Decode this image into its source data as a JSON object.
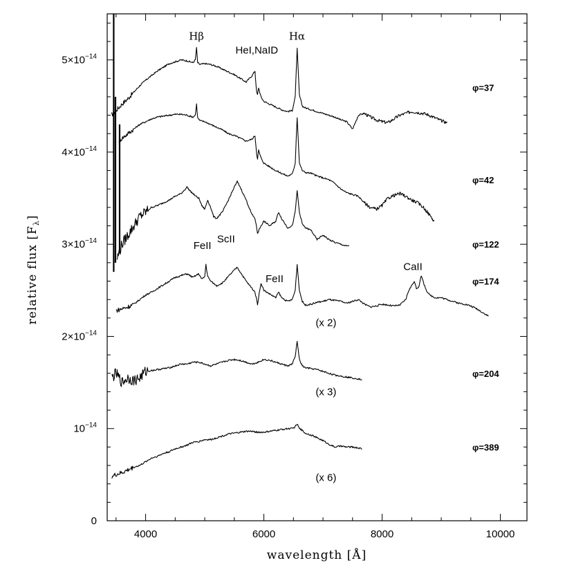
{
  "chart_data": {
    "type": "line",
    "xlabel": "wavelength [Å]",
    "ylabel_main": "relative flux [F",
    "ylabel_sub": "λ",
    "ylabel_close": "]",
    "xlim": [
      3350,
      10450
    ],
    "ylim": [
      0,
      5.5
    ],
    "y_unit": "1e-14",
    "x_ticks": [
      {
        "value": 4000,
        "label": "4000"
      },
      {
        "value": 6000,
        "label": "6000"
      },
      {
        "value": 8000,
        "label": "8000"
      },
      {
        "value": 10000,
        "label": "10000"
      }
    ],
    "y_ticks": [
      {
        "value": 0,
        "base": "0",
        "exp": ""
      },
      {
        "value": 1,
        "base": "10",
        "exp": "−14"
      },
      {
        "value": 2,
        "base": "2×10",
        "exp": "−14"
      },
      {
        "value": 3,
        "base": "3×10",
        "exp": "−14"
      },
      {
        "value": 4,
        "base": "4×10",
        "exp": "−14"
      },
      {
        "value": 5,
        "base": "5×10",
        "exp": "−14"
      }
    ],
    "series": [
      {
        "name": "φ=37",
        "multiplier": "",
        "x": [
          3420,
          3500,
          3600,
          3700,
          3800,
          3900,
          4000,
          4100,
          4200,
          4300,
          4400,
          4500,
          4600,
          4700,
          4800,
          4840,
          4861,
          4880,
          4920,
          5000,
          5100,
          5200,
          5300,
          5400,
          5500,
          5600,
          5700,
          5800,
          5850,
          5875,
          5893,
          5910,
          5950,
          6000,
          6100,
          6200,
          6300,
          6400,
          6480,
          6530,
          6563,
          6600,
          6650,
          6700,
          6800,
          6900,
          7000,
          7100,
          7200,
          7300,
          7400,
          7500,
          7600,
          7700,
          7800,
          7900,
          8000,
          8100,
          8200,
          8300,
          8400,
          8500,
          8600,
          8700,
          8800,
          8900,
          9000,
          9100
        ],
        "y": [
          4.4,
          4.45,
          4.52,
          4.58,
          4.65,
          4.72,
          4.78,
          4.83,
          4.88,
          4.92,
          4.96,
          4.98,
          5.0,
          4.99,
          4.97,
          5.0,
          5.13,
          4.97,
          4.95,
          4.96,
          4.95,
          4.93,
          4.9,
          4.87,
          4.84,
          4.8,
          4.76,
          4.83,
          4.88,
          4.66,
          4.62,
          4.7,
          4.6,
          4.55,
          4.52,
          4.49,
          4.46,
          4.44,
          4.45,
          4.6,
          5.12,
          4.62,
          4.5,
          4.48,
          4.46,
          4.44,
          4.42,
          4.4,
          4.38,
          4.35,
          4.33,
          4.25,
          4.4,
          4.42,
          4.38,
          4.35,
          4.33,
          4.32,
          4.36,
          4.4,
          4.42,
          4.44,
          4.43,
          4.42,
          4.4,
          4.37,
          4.34,
          4.32
        ],
        "label_x": 8000,
        "label_y": 4.7
      },
      {
        "name": "φ=42",
        "multiplier": "",
        "x": [
          3550,
          3600,
          3700,
          3800,
          3900,
          4000,
          4100,
          4200,
          4300,
          4400,
          4500,
          4600,
          4700,
          4800,
          4840,
          4861,
          4880,
          4920,
          5000,
          5100,
          5200,
          5300,
          5400,
          5500,
          5600,
          5700,
          5800,
          5850,
          5875,
          5893,
          5910,
          5950,
          6000,
          6100,
          6200,
          6300,
          6400,
          6480,
          6530,
          6563,
          6600,
          6650,
          6700,
          6800,
          6900,
          7000,
          7100,
          7200,
          7300,
          7400,
          7500,
          7600,
          7700,
          7800,
          7900,
          8000,
          8100,
          8200,
          8300,
          8400,
          8500,
          8600,
          8700,
          8800,
          8880
        ],
        "y": [
          4.12,
          4.15,
          4.2,
          4.25,
          4.3,
          4.33,
          4.36,
          4.38,
          4.39,
          4.4,
          4.41,
          4.41,
          4.4,
          4.38,
          4.4,
          4.52,
          4.37,
          4.34,
          4.33,
          4.3,
          4.27,
          4.24,
          4.2,
          4.18,
          4.15,
          4.12,
          4.14,
          4.18,
          4.0,
          3.92,
          4.02,
          3.94,
          3.88,
          3.84,
          3.8,
          3.77,
          3.74,
          3.76,
          3.88,
          4.38,
          3.88,
          3.8,
          3.78,
          3.77,
          3.74,
          3.72,
          3.7,
          3.66,
          3.6,
          3.56,
          3.54,
          3.52,
          3.45,
          3.4,
          3.38,
          3.42,
          3.5,
          3.53,
          3.55,
          3.52,
          3.48,
          3.45,
          3.4,
          3.32,
          3.25
        ],
        "label_x": 8000,
        "label_y": 3.7
      },
      {
        "name": "φ=122",
        "multiplier": "",
        "x": [
          3520,
          3600,
          3700,
          3800,
          3900,
          4000,
          4100,
          4200,
          4300,
          4400,
          4500,
          4600,
          4700,
          4750,
          4800,
          4850,
          4900,
          4950,
          5000,
          5050,
          5100,
          5150,
          5200,
          5300,
          5400,
          5500,
          5550,
          5600,
          5650,
          5700,
          5800,
          5850,
          5893,
          5950,
          6000,
          6100,
          6200,
          6250,
          6300,
          6400,
          6480,
          6530,
          6563,
          6600,
          6650,
          6700,
          6800,
          6900,
          7000,
          7100,
          7200,
          7300,
          7400,
          7440
        ],
        "y": [
          2.85,
          3.0,
          3.1,
          3.2,
          3.3,
          3.35,
          3.4,
          3.42,
          3.45,
          3.48,
          3.52,
          3.55,
          3.62,
          3.58,
          3.55,
          3.52,
          3.5,
          3.42,
          3.38,
          3.48,
          3.4,
          3.3,
          3.28,
          3.35,
          3.48,
          3.62,
          3.68,
          3.62,
          3.55,
          3.48,
          3.32,
          3.28,
          3.12,
          3.2,
          3.25,
          3.2,
          3.25,
          3.35,
          3.28,
          3.18,
          3.2,
          3.35,
          3.58,
          3.35,
          3.22,
          3.18,
          3.15,
          3.05,
          3.1,
          3.05,
          3.02,
          3.0,
          2.98,
          2.98
        ],
        "label_x": 8000,
        "label_y": 3.0
      },
      {
        "name": "φ=174",
        "multiplier": "(x 2)",
        "x": [
          3500,
          3600,
          3700,
          3800,
          3900,
          4000,
          4100,
          4200,
          4300,
          4400,
          4500,
          4600,
          4700,
          4800,
          4900,
          4950,
          5000,
          5020,
          5050,
          5100,
          5200,
          5300,
          5400,
          5500,
          5550,
          5600,
          5700,
          5800,
          5850,
          5893,
          5950,
          6000,
          6100,
          6200,
          6250,
          6300,
          6400,
          6480,
          6530,
          6563,
          6600,
          6650,
          6700,
          6800,
          6900,
          7000,
          7100,
          7200,
          7300,
          7400,
          7500,
          7600,
          7700,
          7800,
          7900,
          8000,
          8100,
          8200,
          8300,
          8400,
          8450,
          8500,
          8542,
          8580,
          8620,
          8662,
          8700,
          8750,
          8800,
          8900,
          9000,
          9100,
          9200,
          9300,
          9400,
          9500,
          9600,
          9700,
          9800
        ],
        "y": [
          2.28,
          2.3,
          2.32,
          2.35,
          2.4,
          2.45,
          2.48,
          2.52,
          2.56,
          2.6,
          2.64,
          2.66,
          2.68,
          2.64,
          2.68,
          2.62,
          2.65,
          2.78,
          2.65,
          2.6,
          2.55,
          2.58,
          2.65,
          2.72,
          2.75,
          2.7,
          2.6,
          2.52,
          2.48,
          2.35,
          2.58,
          2.5,
          2.46,
          2.42,
          2.48,
          2.42,
          2.38,
          2.4,
          2.5,
          2.78,
          2.5,
          2.38,
          2.34,
          2.35,
          2.37,
          2.38,
          2.4,
          2.39,
          2.38,
          2.36,
          2.38,
          2.4,
          2.35,
          2.32,
          2.33,
          2.35,
          2.34,
          2.33,
          2.34,
          2.4,
          2.5,
          2.55,
          2.6,
          2.52,
          2.54,
          2.66,
          2.58,
          2.5,
          2.45,
          2.42,
          2.42,
          2.4,
          2.38,
          2.36,
          2.35,
          2.33,
          2.3,
          2.26,
          2.22
        ],
        "label_x": 8000,
        "label_y": 2.6
      },
      {
        "name": "φ=204",
        "multiplier": "(x 3)",
        "x": [
          3430,
          3500,
          3600,
          3700,
          3800,
          3900,
          4000,
          4100,
          4200,
          4300,
          4400,
          4500,
          4600,
          4700,
          4800,
          4900,
          5000,
          5100,
          5200,
          5300,
          5400,
          5500,
          5600,
          5700,
          5800,
          5900,
          6000,
          6100,
          6200,
          6300,
          6400,
          6480,
          6530,
          6563,
          6600,
          6650,
          6700,
          6800,
          6900,
          7000,
          7100,
          7200,
          7300,
          7400,
          7500,
          7600,
          7660
        ],
        "y": [
          1.55,
          1.6,
          1.5,
          1.55,
          1.52,
          1.55,
          1.62,
          1.63,
          1.64,
          1.65,
          1.66,
          1.68,
          1.7,
          1.7,
          1.72,
          1.72,
          1.7,
          1.68,
          1.7,
          1.72,
          1.74,
          1.75,
          1.74,
          1.72,
          1.7,
          1.72,
          1.75,
          1.74,
          1.72,
          1.7,
          1.68,
          1.7,
          1.78,
          1.95,
          1.75,
          1.68,
          1.66,
          1.65,
          1.64,
          1.62,
          1.6,
          1.58,
          1.57,
          1.56,
          1.55,
          1.54,
          1.53
        ],
        "label_x": 8000,
        "label_y": 1.6
      },
      {
        "name": "φ=389",
        "multiplier": "(x 6)",
        "x": [
          3430,
          3500,
          3600,
          3700,
          3800,
          3900,
          4000,
          4100,
          4200,
          4300,
          4400,
          4500,
          4600,
          4700,
          4800,
          4900,
          5000,
          5100,
          5200,
          5300,
          5400,
          5500,
          5600,
          5700,
          5800,
          5900,
          6000,
          6100,
          6200,
          6300,
          6400,
          6480,
          6530,
          6563,
          6600,
          6650,
          6700,
          6800,
          6900,
          7000,
          7100,
          7200,
          7300,
          7400,
          7500,
          7600,
          7660
        ],
        "y": [
          0.48,
          0.5,
          0.52,
          0.55,
          0.58,
          0.6,
          0.64,
          0.68,
          0.7,
          0.73,
          0.75,
          0.78,
          0.8,
          0.82,
          0.85,
          0.86,
          0.88,
          0.88,
          0.9,
          0.92,
          0.94,
          0.95,
          0.96,
          0.97,
          0.97,
          0.96,
          0.96,
          0.97,
          0.98,
          0.99,
          1.0,
          1.0,
          1.02,
          1.05,
          1.0,
          0.98,
          0.95,
          0.93,
          0.9,
          0.87,
          0.83,
          0.8,
          0.81,
          0.8,
          0.8,
          0.79,
          0.78
        ],
        "label_x": 8000,
        "label_y": 0.8
      }
    ],
    "annotations": [
      {
        "text": "Hβ",
        "x": 4860,
        "y": 5.22,
        "style": "serif"
      },
      {
        "text": "HeI,NaID",
        "x": 5880,
        "y": 5.07,
        "style": "sans"
      },
      {
        "text": "Hα",
        "x": 6560,
        "y": 5.22,
        "style": "serif"
      },
      {
        "text": "FeII",
        "x": 4960,
        "y": 2.95,
        "style": "sans"
      },
      {
        "text": "ScII",
        "x": 5360,
        "y": 3.02,
        "style": "sans"
      },
      {
        "text": "FeII",
        "x": 6180,
        "y": 2.59,
        "style": "sans"
      },
      {
        "text": "CaII",
        "x": 8520,
        "y": 2.72,
        "style": "sans"
      }
    ],
    "multiplier_positions": [
      {
        "series": 3,
        "x": 7050,
        "y": 2.15
      },
      {
        "series": 4,
        "x": 7050,
        "y": 1.4
      },
      {
        "series": 5,
        "x": 7050,
        "y": 0.47
      }
    ]
  }
}
